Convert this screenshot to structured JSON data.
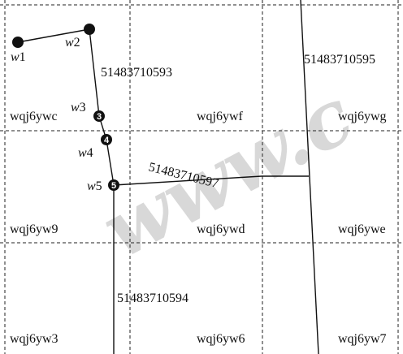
{
  "grid_cells": [
    {
      "id": "wqj6ywc",
      "label": "wqj6ywc"
    },
    {
      "id": "wqj6ywf",
      "label": "wqj6ywf"
    },
    {
      "id": "wqj6ywg",
      "label": "wqj6ywg"
    },
    {
      "id": "wqj6yw9",
      "label": "wqj6yw9"
    },
    {
      "id": "wqj6ywd",
      "label": "wqj6ywd"
    },
    {
      "id": "wqj6ywe",
      "label": "wqj6ywe"
    },
    {
      "id": "wqj6yw3",
      "label": "wqj6yw3"
    },
    {
      "id": "wqj6yw6",
      "label": "wqj6yw6"
    },
    {
      "id": "wqj6yw7",
      "label": "wqj6yw7"
    }
  ],
  "roads": [
    {
      "id": "51483710593",
      "label": "51483710593"
    },
    {
      "id": "51483710595",
      "label": "51483710595"
    },
    {
      "id": "51483710597",
      "label": "51483710597"
    },
    {
      "id": "51483710594",
      "label": "51483710594"
    }
  ],
  "waypoints": [
    {
      "id": "w1",
      "prefix": "w",
      "num": "1",
      "marker": ""
    },
    {
      "id": "w2",
      "prefix": "w",
      "num": "2",
      "marker": ""
    },
    {
      "id": "w3",
      "prefix": "w",
      "num": "3",
      "marker": "3"
    },
    {
      "id": "w4",
      "prefix": "w",
      "num": "4",
      "marker": "4"
    },
    {
      "id": "w5",
      "prefix": "w",
      "num": "5",
      "marker": "5"
    }
  ],
  "watermark": "www.c",
  "colors": {
    "line": "#111111",
    "grid": "#222222",
    "point": "#111111",
    "watermark": "#9a9a9a"
  }
}
